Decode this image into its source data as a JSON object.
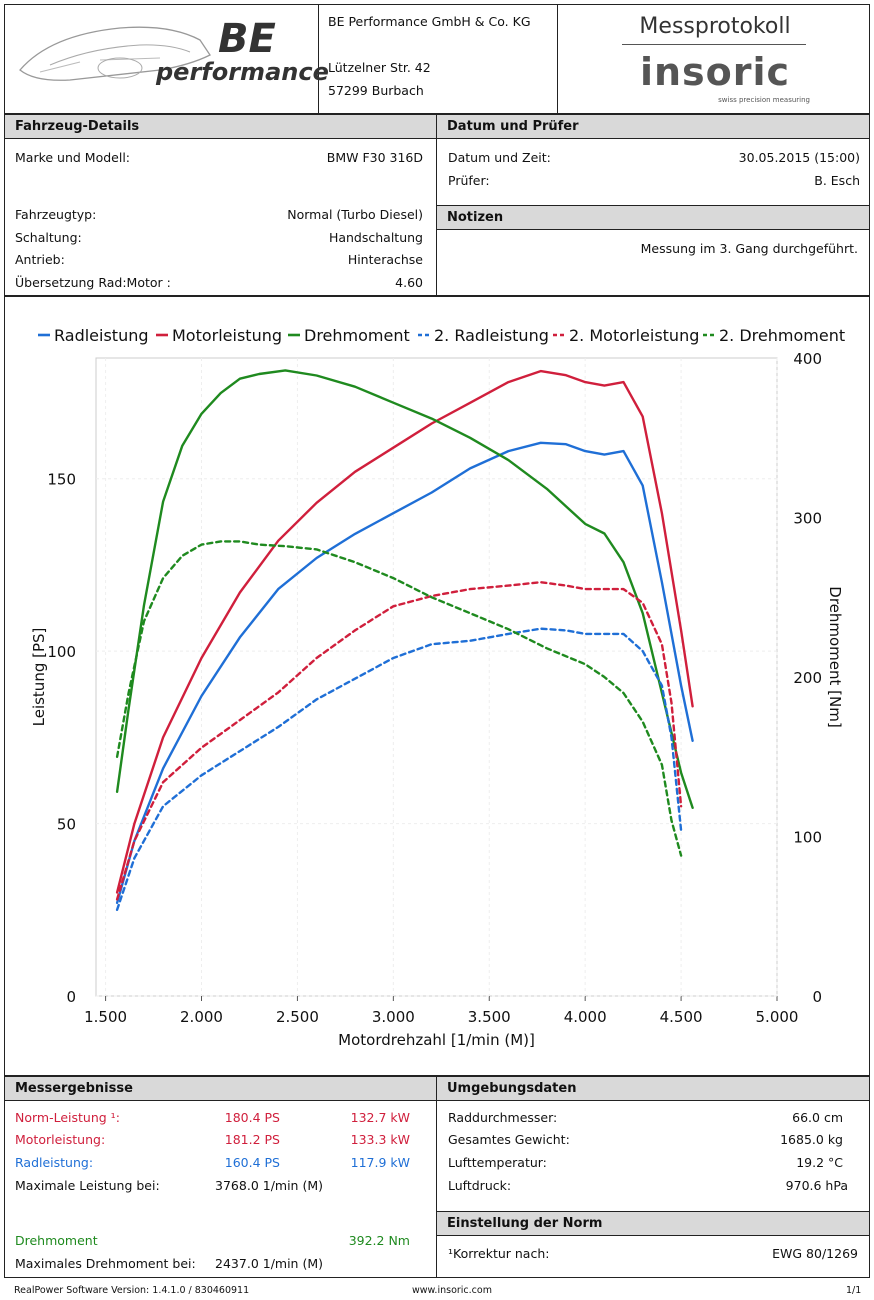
{
  "header": {
    "company": "BE Performance GmbH & Co. KG",
    "street": "Lützelner Str. 42",
    "city": "57299 Burbach",
    "logo_text": "performance",
    "logo_mark": "BE",
    "protocol_title": "Messprotokoll",
    "brand": "insoric",
    "brand_tagline": "swiss precision measuring"
  },
  "vehicle": {
    "title": "Fahrzeug-Details",
    "model_label": "Marke und Modell:",
    "model": "BMW F30 316D",
    "type_label": "Fahrzeugtyp:",
    "type": "Normal (Turbo Diesel)",
    "gear_label": "Schaltung:",
    "gear": "Handschaltung",
    "drive_label": "Antrieb:",
    "drive": "Hinterachse",
    "ratio_label": "Übersetzung Rad:Motor :",
    "ratio": "4.60"
  },
  "date": {
    "title": "Datum und Prüfer",
    "dt_label": "Datum und Zeit:",
    "dt": "30.05.2015 (15:00)",
    "tester_label": "Prüfer:",
    "tester": "B. Esch"
  },
  "notes": {
    "title": "Notizen",
    "text": "Messung im 3. Gang durchgeführt."
  },
  "results": {
    "title": "Messergebnisse",
    "norm_label": "Norm-Leistung ¹:",
    "norm_ps": "180.4 PS",
    "norm_kw": "132.7 kW",
    "motor_label": "Motorleistung:",
    "motor_ps": "181.2 PS",
    "motor_kw": "133.3 kW",
    "wheel_label": "Radleistung:",
    "wheel_ps": "160.4 PS",
    "wheel_kw": "117.9 kW",
    "maxp_label": "Maximale Leistung bei:",
    "maxp": "3768.0 1/min (M)",
    "torque_label": "Drehmoment",
    "torque": "392.2 Nm",
    "maxt_label": "Maximales Drehmoment bei:",
    "maxt": "2437.0 1/min (M)"
  },
  "env": {
    "title": "Umgebungsdaten",
    "wheel_label": "Raddurchmesser:",
    "wheel": "66.0 cm",
    "weight_label": "Gesamtes Gewicht:",
    "weight": "1685.0 kg",
    "temp_label": "Lufttemperatur:",
    "temp": "19.2 °C",
    "press_label": "Luftdruck:",
    "press": "970.6 hPa"
  },
  "norm": {
    "title": "Einstellung der Norm",
    "label": "¹Korrektur nach:",
    "value": "EWG 80/1269"
  },
  "footer": {
    "version": "RealPower Software Version: 1.4.1.0 / 830460911",
    "url": "www.insoric.com",
    "page": "1/1"
  },
  "colors": {
    "red": "#d01f3c",
    "blue": "#1f6fd6",
    "green": "#1f8a1f"
  },
  "chart_data": {
    "type": "line",
    "xlabel": "Motordrehzahl [1/min (M)]",
    "ylabel": "Leistung [PS]",
    "y2label": "Drehmoment [Nm]",
    "xlim": [
      1450,
      5000
    ],
    "ylim": [
      0,
      185
    ],
    "y2lim": [
      0,
      400
    ],
    "xticks": [
      1500,
      2000,
      2500,
      3000,
      3500,
      4000,
      4500,
      5000
    ],
    "xtick_labels": [
      "1.500",
      "2.000",
      "2.500",
      "3.000",
      "3.500",
      "4.000",
      "4.500",
      "5.000"
    ],
    "yticks": [
      0,
      50,
      100,
      150
    ],
    "y2ticks": [
      0,
      100,
      200,
      300,
      400
    ],
    "legend_position": "top",
    "series": [
      {
        "name": "Radleistung",
        "axis": "left",
        "color": "#1f6fd6",
        "dash": false,
        "x": [
          1560,
          1650,
          1800,
          2000,
          2200,
          2400,
          2600,
          2800,
          3000,
          3200,
          3400,
          3600,
          3768,
          3900,
          4000,
          4100,
          4200,
          4300,
          4400,
          4500,
          4560
        ],
        "y": [
          27,
          45,
          66,
          87,
          104,
          118,
          127,
          134,
          140,
          146,
          153,
          158,
          160.4,
          160,
          158,
          157,
          158,
          148,
          120,
          90,
          74
        ]
      },
      {
        "name": "Motorleistung",
        "axis": "left",
        "color": "#d01f3c",
        "dash": false,
        "x": [
          1560,
          1650,
          1800,
          2000,
          2200,
          2400,
          2600,
          2800,
          3000,
          3200,
          3400,
          3600,
          3768,
          3900,
          4000,
          4100,
          4200,
          4300,
          4400,
          4500,
          4560
        ],
        "y": [
          30,
          50,
          75,
          98,
          117,
          132,
          143,
          152,
          159,
          166,
          172,
          178,
          181.2,
          180,
          178,
          177,
          178,
          168,
          140,
          106,
          84
        ]
      },
      {
        "name": "Drehmoment",
        "axis": "right",
        "color": "#1f8a1f",
        "dash": false,
        "x": [
          1560,
          1620,
          1700,
          1800,
          1900,
          2000,
          2100,
          2200,
          2300,
          2437,
          2600,
          2800,
          3000,
          3200,
          3400,
          3600,
          3800,
          4000,
          4100,
          4200,
          4300,
          4400,
          4500,
          4560
        ],
        "y": [
          128,
          180,
          245,
          310,
          345,
          365,
          378,
          387,
          390,
          392.2,
          389,
          382,
          372,
          362,
          350,
          336,
          318,
          296,
          290,
          272,
          240,
          190,
          140,
          118
        ]
      },
      {
        "name": "2. Radleistung",
        "axis": "left",
        "color": "#1f6fd6",
        "dash": true,
        "x": [
          1560,
          1650,
          1800,
          2000,
          2200,
          2400,
          2600,
          2800,
          3000,
          3200,
          3400,
          3600,
          3768,
          3900,
          4000,
          4100,
          4200,
          4300,
          4400,
          4450,
          4500
        ],
        "y": [
          25,
          40,
          55,
          64,
          71,
          78,
          86,
          92,
          98,
          102,
          103,
          105,
          106.5,
          106,
          105,
          105,
          105,
          100,
          90,
          75,
          48
        ]
      },
      {
        "name": "2. Motorleistung",
        "axis": "left",
        "color": "#d01f3c",
        "dash": true,
        "x": [
          1560,
          1650,
          1800,
          2000,
          2200,
          2400,
          2600,
          2800,
          3000,
          3200,
          3400,
          3600,
          3768,
          3900,
          4000,
          4100,
          4200,
          4300,
          4400,
          4450,
          4500
        ],
        "y": [
          28,
          45,
          62,
          72,
          80,
          88,
          98,
          106,
          113,
          116,
          118,
          119,
          120,
          119,
          118,
          118,
          118,
          114,
          102,
          85,
          55
        ]
      },
      {
        "name": "2. Drehmoment",
        "axis": "right",
        "color": "#1f8a1f",
        "dash": true,
        "x": [
          1560,
          1620,
          1700,
          1800,
          1900,
          2000,
          2100,
          2200,
          2300,
          2437,
          2600,
          2800,
          3000,
          3200,
          3400,
          3600,
          3800,
          4000,
          4100,
          4200,
          4300,
          4400,
          4450,
          4500
        ],
        "y": [
          150,
          190,
          235,
          262,
          276,
          283,
          285,
          285,
          283,
          282,
          280,
          272,
          262,
          250,
          240,
          230,
          218,
          208,
          200,
          190,
          172,
          145,
          110,
          88
        ]
      }
    ]
  }
}
